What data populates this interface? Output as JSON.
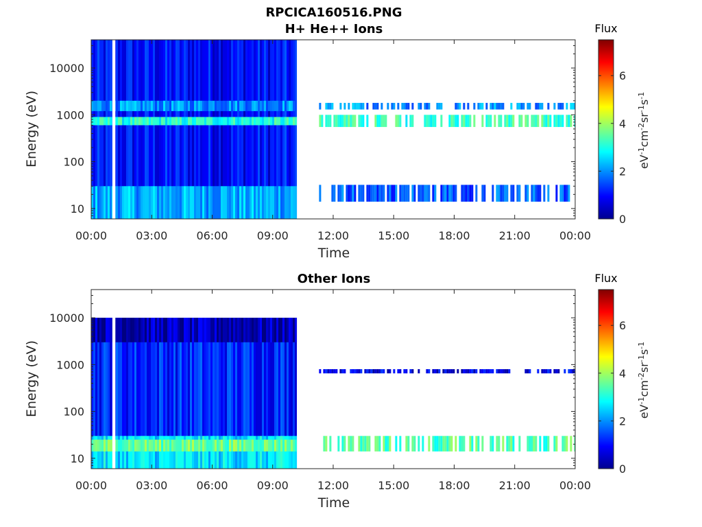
{
  "chart_data": [
    {
      "type": "heatmap",
      "title": "RPCICA160516.PNG",
      "subtitle": "H+ He++ Ions",
      "xlabel": "Time",
      "ylabel": "Energy (eV)",
      "x_ticks": [
        "00:00",
        "03:00",
        "06:00",
        "09:00",
        "12:00",
        "15:00",
        "18:00",
        "21:00",
        "00:00"
      ],
      "xlim_hours": [
        0,
        24
      ],
      "y_scale": "log",
      "y_ticks": [
        "10",
        "100",
        "1000",
        "10000"
      ],
      "ylim": [
        6,
        40000
      ],
      "colorbar": {
        "title": "Flux",
        "label": "eV-1cm-2sr-1s-1",
        "ticks": [
          "0",
          "2",
          "4",
          "6"
        ],
        "range": [
          0,
          7.5
        ],
        "colormap": "jet"
      },
      "regions": [
        {
          "t_start": 0.0,
          "t_end": 10.2,
          "e_min": 6,
          "e_max": 40000,
          "level": 1.0,
          "note": "background"
        },
        {
          "t_start": 0.0,
          "t_end": 10.2,
          "e_min": 6,
          "e_max": 30,
          "level": 2.2
        },
        {
          "t_start": 0.0,
          "t_end": 10.2,
          "e_min": 600,
          "e_max": 900,
          "level": 3.0
        },
        {
          "t_start": 0.0,
          "t_end": 10.2,
          "e_min": 1200,
          "e_max": 2000,
          "level": 2.0
        },
        {
          "t_start": 1.05,
          "t_end": 1.2,
          "e_min": 6,
          "e_max": 40000,
          "level": null,
          "note": "data gap"
        },
        {
          "t_start": 11.3,
          "t_end": 24.0,
          "e_min": 550,
          "e_max": 1000,
          "level": 3.2
        },
        {
          "t_start": 11.3,
          "t_end": 24.0,
          "e_min": 1300,
          "e_max": 1800,
          "level": 2.0
        },
        {
          "t_start": 11.3,
          "t_end": 24.0,
          "e_min": 14,
          "e_max": 32,
          "level": 1.6
        }
      ]
    },
    {
      "type": "heatmap",
      "title": "Other Ions",
      "xlabel": "Time",
      "ylabel": "Energy (eV)",
      "x_ticks": [
        "00:00",
        "03:00",
        "06:00",
        "09:00",
        "12:00",
        "15:00",
        "18:00",
        "21:00",
        "00:00"
      ],
      "xlim_hours": [
        0,
        24
      ],
      "y_scale": "log",
      "y_ticks": [
        "10",
        "100",
        "1000",
        "10000"
      ],
      "ylim": [
        6,
        40000
      ],
      "colorbar": {
        "title": "Flux",
        "label": "eV-1cm-2sr-1s-1",
        "ticks": [
          "0",
          "2",
          "4",
          "6"
        ],
        "range": [
          0,
          7.5
        ],
        "colormap": "jet"
      },
      "regions": [
        {
          "t_start": 0.0,
          "t_end": 10.2,
          "e_min": 6,
          "e_max": 10000,
          "level": 1.2,
          "note": "background"
        },
        {
          "t_start": 0.0,
          "t_end": 10.2,
          "e_min": 3000,
          "e_max": 10000,
          "level": 0.4
        },
        {
          "t_start": 0.0,
          "t_end": 10.2,
          "e_min": 6,
          "e_max": 30,
          "level": 2.6
        },
        {
          "t_start": 0.0,
          "t_end": 10.2,
          "e_min": 14,
          "e_max": 25,
          "level": 3.6
        },
        {
          "t_start": 1.05,
          "t_end": 1.2,
          "e_min": 6,
          "e_max": 40000,
          "level": null,
          "note": "data gap"
        },
        {
          "t_start": 11.3,
          "t_end": 24.0,
          "e_min": 14,
          "e_max": 30,
          "level": 3.4
        },
        {
          "t_start": 11.3,
          "t_end": 24.0,
          "e_min": 650,
          "e_max": 800,
          "level": 0.8
        }
      ]
    }
  ]
}
